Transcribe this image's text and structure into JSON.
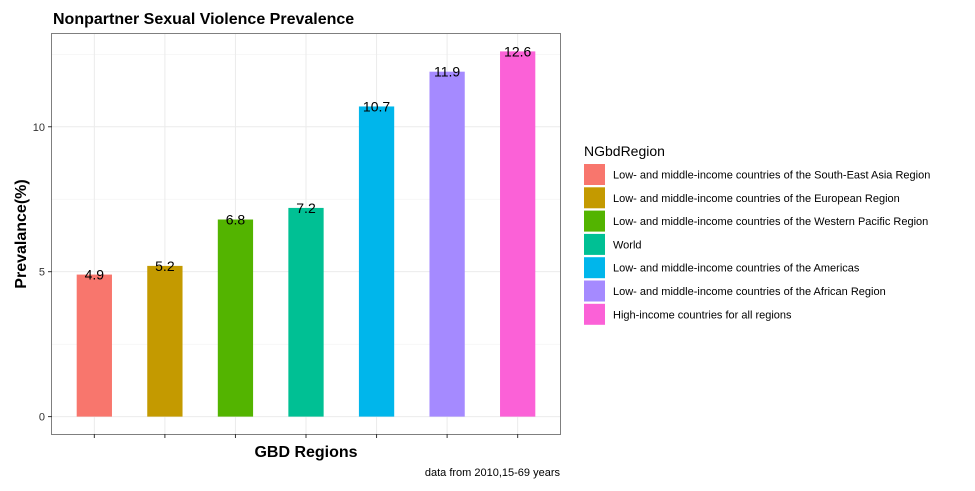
{
  "chart_data": {
    "type": "bar",
    "title": "Nonpartner Sexual Violence Prevalence",
    "xlabel": "GBD Regions",
    "ylabel": "Prevalance(%)",
    "caption": "data from 2010,15-69 years",
    "ylim": [
      -0.6,
      13.2
    ],
    "yticks": [
      0,
      5,
      10
    ],
    "grid": true,
    "legend": {
      "title": "NGbdRegion",
      "placement": "right"
    },
    "categories": [
      "Low- and middle-income countries of the South-East Asia Region",
      "Low- and middle-income countries of the European Region",
      "Low- and middle-income countries of the Western Pacific Region",
      "World",
      "Low- and middle-income countries of the Americas",
      "Low- and middle-income countries of the African Region",
      "High-income countries for all regions"
    ],
    "values": [
      4.9,
      5.2,
      6.8,
      7.2,
      10.7,
      11.9,
      12.6
    ],
    "value_labels": [
      "4.9",
      "5.2",
      "6.8",
      "7.2",
      "10.7",
      "11.9",
      "12.6"
    ],
    "colors": [
      "#F8766D",
      "#C49A00",
      "#53B400",
      "#00C094",
      "#00B6EB",
      "#A58AFF",
      "#FB61D7"
    ]
  }
}
